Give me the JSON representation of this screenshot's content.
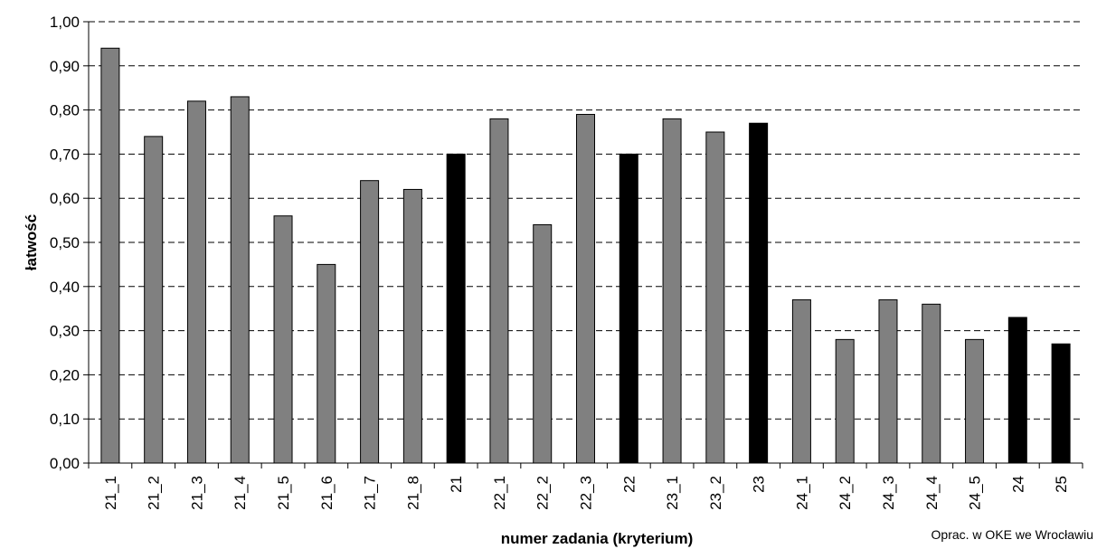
{
  "chart_data": {
    "type": "bar",
    "title": "",
    "xlabel": "numer zadania (kryterium)",
    "ylabel": "łatwość",
    "ylim": [
      0,
      1
    ],
    "yticks": [
      "0,00",
      "0,10",
      "0,20",
      "0,30",
      "0,40",
      "0,50",
      "0,60",
      "0,70",
      "0,80",
      "0,90",
      "1,00"
    ],
    "grid": true,
    "legend": "none",
    "categories": [
      "21_1",
      "21_2",
      "21_3",
      "21_4",
      "21_5",
      "21_6",
      "21_7",
      "21_8",
      "21",
      "22_1",
      "22_2",
      "22_3",
      "22",
      "23_1",
      "23_2",
      "23",
      "24_1",
      "24_2",
      "24_3",
      "24_4",
      "24_5",
      "24",
      "25"
    ],
    "values": [
      0.94,
      0.74,
      0.82,
      0.83,
      0.56,
      0.45,
      0.64,
      0.62,
      0.7,
      0.78,
      0.54,
      0.79,
      0.7,
      0.78,
      0.75,
      0.77,
      0.37,
      0.28,
      0.37,
      0.36,
      0.28,
      0.33,
      0.27
    ],
    "kinds": [
      "sub",
      "sub",
      "sub",
      "sub",
      "sub",
      "sub",
      "sub",
      "sub",
      "total",
      "sub",
      "sub",
      "sub",
      "total",
      "sub",
      "sub",
      "total",
      "sub",
      "sub",
      "sub",
      "sub",
      "sub",
      "total",
      "total"
    ],
    "colors": {
      "sub": "#808080",
      "total": "#000000"
    },
    "credit": "Oprac. w OKE we Wrocławiu"
  }
}
